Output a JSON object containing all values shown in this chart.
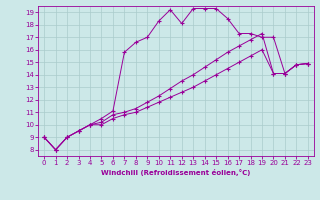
{
  "xlabel": "Windchill (Refroidissement éolien,°C)",
  "bg_color": "#cce8e8",
  "grid_color": "#aacccc",
  "line_color": "#990099",
  "xmin": 0,
  "xmax": 23,
  "ymin": 8,
  "ymax": 19,
  "line1_x": [
    0,
    1,
    2,
    3,
    4,
    5,
    6,
    7,
    8,
    9,
    10,
    11,
    12,
    13,
    14,
    15,
    16,
    17,
    18,
    19,
    20,
    21,
    22,
    23
  ],
  "line1_y": [
    9.0,
    8.0,
    9.0,
    9.5,
    10.0,
    10.5,
    11.1,
    15.8,
    16.6,
    17.0,
    18.3,
    19.2,
    18.1,
    19.3,
    19.3,
    19.3,
    18.5,
    17.3,
    17.3,
    17.0,
    17.0,
    14.1,
    14.8,
    14.9
  ],
  "line2_x": [
    0,
    1,
    2,
    3,
    4,
    5,
    6,
    7,
    8,
    9,
    10,
    11,
    12,
    13,
    14,
    15,
    16,
    17,
    18,
    19,
    20,
    21,
    22,
    23
  ],
  "line2_y": [
    9.0,
    8.0,
    9.0,
    9.5,
    10.0,
    10.2,
    10.8,
    11.0,
    11.3,
    11.8,
    12.3,
    12.9,
    13.5,
    14.0,
    14.6,
    15.2,
    15.8,
    16.3,
    16.8,
    17.3,
    14.1,
    14.1,
    14.8,
    14.9
  ],
  "line3_x": [
    0,
    1,
    2,
    3,
    4,
    5,
    6,
    7,
    8,
    9,
    10,
    11,
    12,
    13,
    14,
    15,
    16,
    17,
    18,
    19,
    20,
    21,
    22,
    23
  ],
  "line3_y": [
    9.0,
    8.0,
    9.0,
    9.5,
    10.0,
    10.0,
    10.5,
    10.8,
    11.0,
    11.4,
    11.8,
    12.2,
    12.6,
    13.0,
    13.5,
    14.0,
    14.5,
    15.0,
    15.5,
    16.0,
    14.1,
    14.1,
    14.8,
    14.9
  ]
}
